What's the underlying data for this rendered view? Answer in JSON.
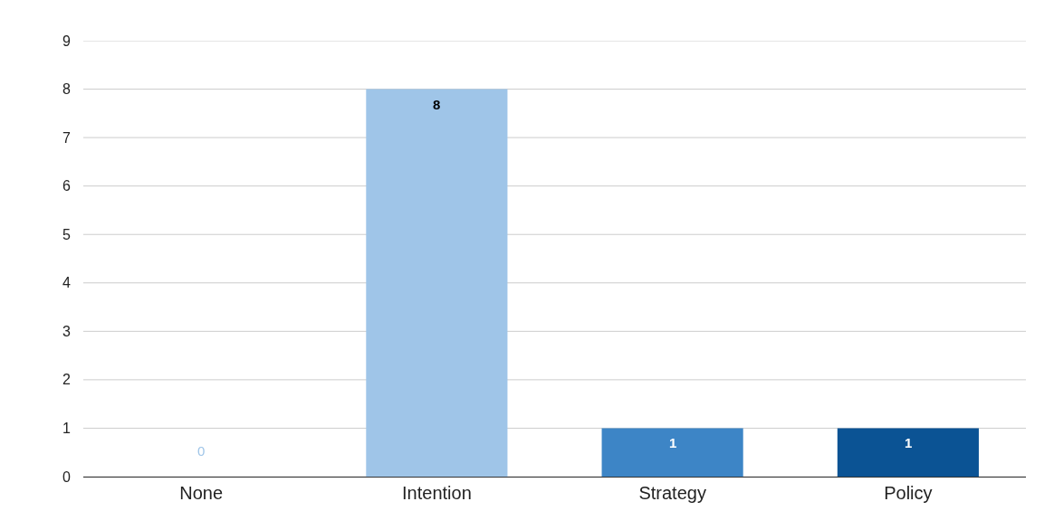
{
  "chart_data": {
    "type": "bar",
    "categories": [
      "None",
      "Intention",
      "Strategy",
      "Policy"
    ],
    "values": [
      0,
      8,
      1,
      1
    ],
    "colors": [
      "#9fc5e8",
      "#9fc5e8",
      "#3d85c6",
      "#0b5394"
    ],
    "ylim": [
      0,
      9
    ],
    "yticks": [
      0,
      1,
      2,
      3,
      4,
      5,
      6,
      7,
      8,
      9
    ],
    "grid": "y",
    "data_labels": true
  }
}
